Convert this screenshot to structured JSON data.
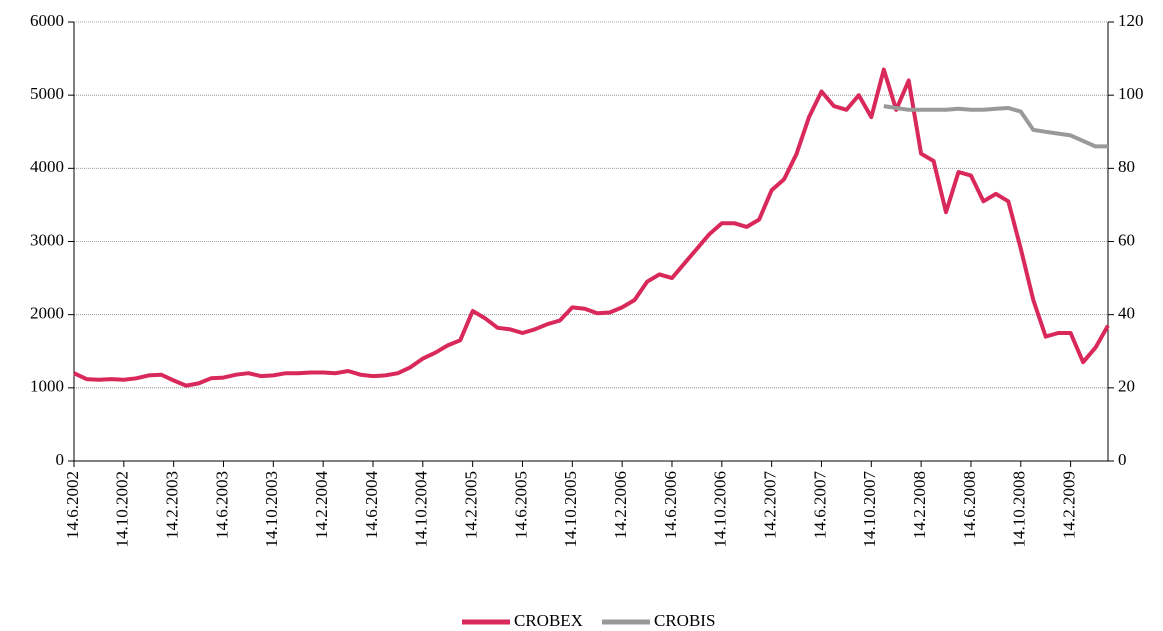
{
  "chart_data": {
    "type": "line",
    "categories": [
      "14.6.2002",
      null,
      null,
      null,
      "14.10.2002",
      null,
      null,
      null,
      "14.2.2003",
      null,
      null,
      null,
      "14.6.2003",
      null,
      null,
      null,
      "14.10.2003",
      null,
      null,
      null,
      "14.2.2004",
      null,
      null,
      null,
      "14.6.2004",
      null,
      null,
      null,
      "14.10.2004",
      null,
      null,
      null,
      "14.2.2005",
      null,
      null,
      null,
      "14.6.2005",
      null,
      null,
      null,
      "14.10.2005",
      null,
      null,
      null,
      "14.2.2006",
      null,
      null,
      null,
      "14.6.2006",
      null,
      null,
      null,
      "14.10.2006",
      null,
      null,
      null,
      "14.2.2007",
      null,
      null,
      null,
      "14.6.2007",
      null,
      null,
      null,
      "14.10.2007",
      null,
      null,
      null,
      "14.2.2008",
      null,
      null,
      null,
      "14.6.2008",
      null,
      null,
      null,
      "14.10.2008",
      null,
      null,
      null,
      "14.2.2009",
      null,
      null,
      null
    ],
    "series": [
      {
        "name": "CROBEX",
        "color": "#d9285a",
        "values": [
          1200,
          1120,
          1110,
          1120,
          1110,
          1130,
          1170,
          1180,
          1100,
          1030,
          1060,
          1130,
          1140,
          1180,
          1200,
          1160,
          1170,
          1200,
          1200,
          1210,
          1210,
          1200,
          1230,
          1180,
          1160,
          1170,
          1200,
          1280,
          1400,
          1480,
          1580,
          1650,
          2050,
          1950,
          1820,
          1800,
          1750,
          1800,
          1870,
          1920,
          2100,
          2080,
          2020,
          2030,
          2100,
          2200,
          2450,
          2550,
          2500,
          2700,
          2900,
          3100,
          3250,
          3250,
          3200,
          3300,
          3700,
          3850,
          4200,
          4700,
          5050,
          4850,
          4800,
          5000,
          4700,
          5350,
          4800,
          5200,
          4200,
          4100,
          3400,
          3950,
          3900,
          3550,
          3650,
          3550,
          2900,
          2200,
          1700,
          1750,
          1750,
          1350,
          1550,
          1850
        ]
      },
      {
        "name": "CROBIS",
        "color": "#999999",
        "axis": "y2",
        "values": [
          null,
          null,
          null,
          null,
          null,
          null,
          null,
          null,
          null,
          null,
          null,
          null,
          null,
          null,
          null,
          null,
          null,
          null,
          null,
          null,
          null,
          null,
          null,
          null,
          null,
          null,
          null,
          null,
          null,
          null,
          null,
          null,
          null,
          null,
          null,
          null,
          null,
          null,
          null,
          null,
          null,
          null,
          null,
          null,
          null,
          null,
          null,
          null,
          null,
          null,
          null,
          null,
          null,
          null,
          null,
          null,
          null,
          null,
          null,
          null,
          null,
          null,
          null,
          null,
          null,
          97,
          96.5,
          96,
          96,
          96,
          96,
          96.3,
          96,
          96,
          96.3,
          96.5,
          95.5,
          90.5,
          90,
          89.5,
          89,
          87.5,
          86,
          86
        ]
      }
    ],
    "ylim": [
      0,
      6000
    ],
    "yticks": [
      0,
      1000,
      2000,
      3000,
      4000,
      5000,
      6000
    ],
    "y2lim": [
      0,
      120
    ],
    "y2ticks": [
      0,
      20,
      40,
      60,
      80,
      100,
      120
    ],
    "grid": true,
    "legend": "bottom"
  }
}
